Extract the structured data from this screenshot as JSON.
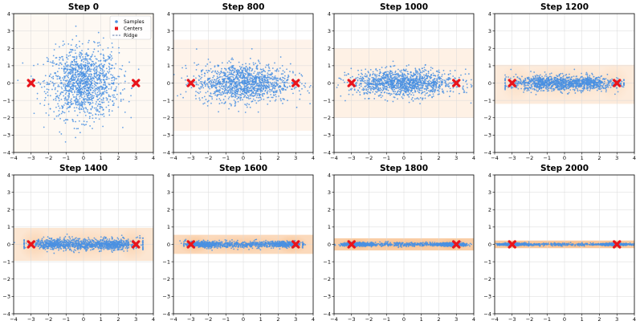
{
  "chart_data": {
    "type": "scatter",
    "layout": "2 rows x 4 columns of subplots",
    "xlim": [
      -4,
      4
    ],
    "ylim": [
      -4,
      4
    ],
    "xticks": [
      -4,
      -3,
      -2,
      -1,
      0,
      1,
      2,
      3,
      4
    ],
    "yticks": [
      -4,
      -3,
      -2,
      -1,
      0,
      1,
      2,
      3,
      4
    ],
    "grid": true,
    "colors": {
      "samples": "#4a90e2",
      "centers": "#e8141b",
      "ridge": "#2b4c8c",
      "density": "#f6a55c",
      "grid": "#d9d9d9"
    },
    "legend": {
      "position": "top-right",
      "panel": 0,
      "entries": [
        {
          "label": "Samples",
          "marker": "dot"
        },
        {
          "label": "Centers",
          "marker": "square"
        },
        {
          "label": "Ridge",
          "marker": "dashed-line"
        }
      ]
    },
    "centers": [
      [
        -3,
        0
      ],
      [
        3,
        0
      ]
    ],
    "panels": [
      {
        "title": "Step 0",
        "std_x": 1.0,
        "std_y": 1.0,
        "mode_spread": 0.0,
        "mode_weight": 0.0,
        "band_y": [
          -4.0,
          4.0
        ],
        "density_alpha": 0.07
      },
      {
        "title": "Step 800",
        "std_x": 1.35,
        "std_y": 0.55,
        "mode_spread": 0.0,
        "mode_weight": 0.0,
        "band_y": [
          -2.75,
          2.5
        ],
        "density_alpha": 0.13
      },
      {
        "title": "Step 1000",
        "std_x": 1.5,
        "std_y": 0.38,
        "mode_spread": 0.0,
        "mode_weight": 0.0,
        "band_y": [
          -2.0,
          2.0
        ],
        "density_alpha": 0.16
      },
      {
        "title": "Step 1200",
        "std_x": 1.55,
        "std_y": 0.22,
        "mode_spread": 1.5,
        "mode_weight": 0.2,
        "band_y": [
          -1.2,
          1.05
        ],
        "density_alpha": 0.22
      },
      {
        "title": "Step 1400",
        "std_x": 1.6,
        "std_y": 0.17,
        "mode_spread": 1.8,
        "mode_weight": 0.35,
        "band_y": [
          -0.95,
          0.95
        ],
        "density_alpha": 0.28
      },
      {
        "title": "Step 1600",
        "std_x": 1.6,
        "std_y": 0.1,
        "mode_spread": 2.4,
        "mode_weight": 0.55,
        "band_y": [
          -0.55,
          0.55
        ],
        "density_alpha": 0.42
      },
      {
        "title": "Step 1800",
        "std_x": 1.6,
        "std_y": 0.06,
        "mode_spread": 2.7,
        "mode_weight": 0.7,
        "band_y": [
          -0.35,
          0.35
        ],
        "density_alpha": 0.55
      },
      {
        "title": "Step 2000",
        "std_x": 1.6,
        "std_y": 0.04,
        "mode_spread": 2.9,
        "mode_weight": 0.8,
        "band_y": [
          -0.22,
          0.22
        ],
        "density_alpha": 0.6
      }
    ]
  }
}
